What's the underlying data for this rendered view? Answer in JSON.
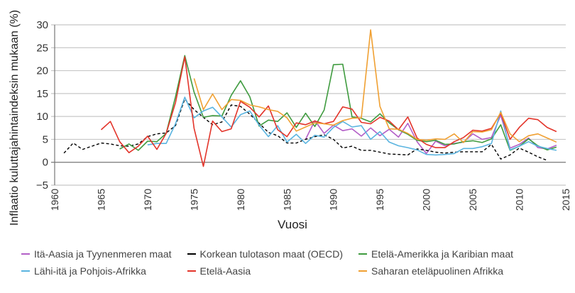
{
  "chart_data": {
    "type": "line",
    "title": "",
    "xlabel": "Vuosi",
    "ylabel": "Inflaatio kuluttajahintaindeksin mukaan (%)",
    "xlim": [
      1960,
      2015
    ],
    "ylim": [
      -5,
      30
    ],
    "xticks": [
      "1960",
      "1965",
      "1970",
      "1975",
      "1980",
      "1985",
      "1990",
      "1995",
      "2000",
      "2005",
      "2010",
      "2015"
    ],
    "yticks": [
      "−5",
      "0",
      "5",
      "10",
      "15",
      "20",
      "25",
      "30"
    ],
    "grid": "horizontal",
    "legend_position": "bottom",
    "series": [
      {
        "name": "Itä-Aasia ja Tyynenmeren maat",
        "color": "#b35fc7",
        "dashed": false,
        "start": 1987,
        "values": [
          5.0,
          9.1,
          6.3,
          8.1,
          6.9,
          7.3,
          5.7,
          7.5,
          5.8,
          7.2,
          5.5,
          8.5,
          4.5,
          1.9,
          4.6,
          3.6,
          4.1,
          4.4,
          6.2,
          5.0,
          5.4,
          10.3,
          3.1,
          3.9,
          5.3,
          3.2,
          2.9,
          3.7
        ]
      },
      {
        "name": "Korkean tulotason maat (OECD)",
        "color": "#000000",
        "dashed": true,
        "start": 1961,
        "values": [
          2.0,
          4.2,
          2.8,
          3.5,
          4.2,
          4.0,
          3.6,
          3.5,
          4.0,
          5.6,
          6.2,
          6.4,
          8.0,
          13.8,
          11.5,
          9.8,
          8.2,
          8.8,
          12.5,
          12.2,
          10.5,
          8.5,
          6.5,
          5.8,
          4.2,
          4.2,
          5.0,
          5.6,
          6.0,
          5.0,
          3.1,
          3.5,
          2.6,
          2.6,
          2.2,
          1.8,
          1.7,
          1.6,
          2.9,
          2.6,
          2.2,
          2.0,
          2.2,
          2.3,
          2.3,
          2.3,
          3.9,
          0.7,
          1.6,
          3.1,
          2.2,
          1.2,
          0.4
        ]
      },
      {
        "name": "Etelä-Amerikka ja Karibian maat",
        "color": "#3f9b3f",
        "dashed": false,
        "start": 1967,
        "values": [
          2.9,
          4.0,
          2.6,
          4.6,
          4.5,
          6.3,
          14.3,
          23.3,
          15.3,
          9.8,
          10.2,
          10.1,
          14.6,
          17.8,
          14.3,
          7.9,
          9.2,
          8.9,
          10.8,
          7.6,
          10.7,
          7.8,
          11.4,
          21.3,
          21.4,
          9.9,
          9.6,
          8.8,
          10.6,
          8.6,
          7.1,
          6.1,
          4.8,
          4.5,
          4.8,
          3.9,
          4.0,
          4.5,
          4.7,
          4.3,
          5.1,
          8.2,
          2.6,
          3.5,
          5.1,
          3.6,
          2.7,
          3.3
        ]
      },
      {
        "name": "Lähi-itä ja Pohjois-Afrikka",
        "color": "#5ab4e0",
        "dashed": false,
        "start": 1970,
        "values": [
          3.8,
          4.1,
          4.1,
          8.4,
          14.2,
          9.7,
          11.2,
          12.0,
          9.9,
          7.7,
          10.4,
          11.2,
          8.1,
          5.6,
          8.0,
          4.4,
          6.1,
          4.1,
          5.9,
          5.5,
          7.6,
          8.9,
          7.7,
          8.0,
          5.0,
          6.7,
          4.4,
          3.6,
          3.2,
          2.7,
          1.7,
          1.6,
          1.7,
          1.9,
          3.0,
          3.0,
          3.4,
          4.1,
          11.2,
          2.7,
          3.5,
          4.5,
          3.5,
          3.0,
          2.6
        ]
      },
      {
        "name": "Etelä-Aasia",
        "color": "#e3342a",
        "dashed": false,
        "start": 1965,
        "values": [
          7.1,
          8.9,
          4.5,
          2.1,
          3.5,
          5.7,
          2.8,
          6.3,
          13.0,
          23.0,
          7.4,
          -0.9,
          9.0,
          6.7,
          7.3,
          13.3,
          12.0,
          9.9,
          12.3,
          7.1,
          5.6,
          8.6,
          8.2,
          9.0,
          8.4,
          8.9,
          12.1,
          11.6,
          8.7,
          8.4,
          9.8,
          9.0,
          7.1,
          9.9,
          5.3,
          3.9,
          3.2,
          3.2,
          4.5,
          5.4,
          7.0,
          6.8,
          7.4,
          10.7,
          5.0,
          7.6,
          9.6,
          9.3,
          7.6,
          6.7
        ]
      },
      {
        "name": "Saharan eteläpuolinen Afrikka",
        "color": "#f0a032",
        "dashed": false,
        "start": 1975,
        "values": [
          18.3,
          11.5,
          14.9,
          11.5,
          13.7,
          13.5,
          12.5,
          12.1,
          11.5,
          11.1,
          9.7,
          6.8,
          7.7,
          8.6,
          8.4,
          8.1,
          9.1,
          9.6,
          9.7,
          28.9,
          12.2,
          7.3,
          7.2,
          6.3,
          5.0,
          4.8,
          5.1,
          5.0,
          6.2,
          4.3,
          6.7,
          6.6,
          7.1,
          10.9,
          6.2,
          4.5,
          5.8,
          6.2,
          5.3,
          4.4
        ]
      }
    ]
  }
}
